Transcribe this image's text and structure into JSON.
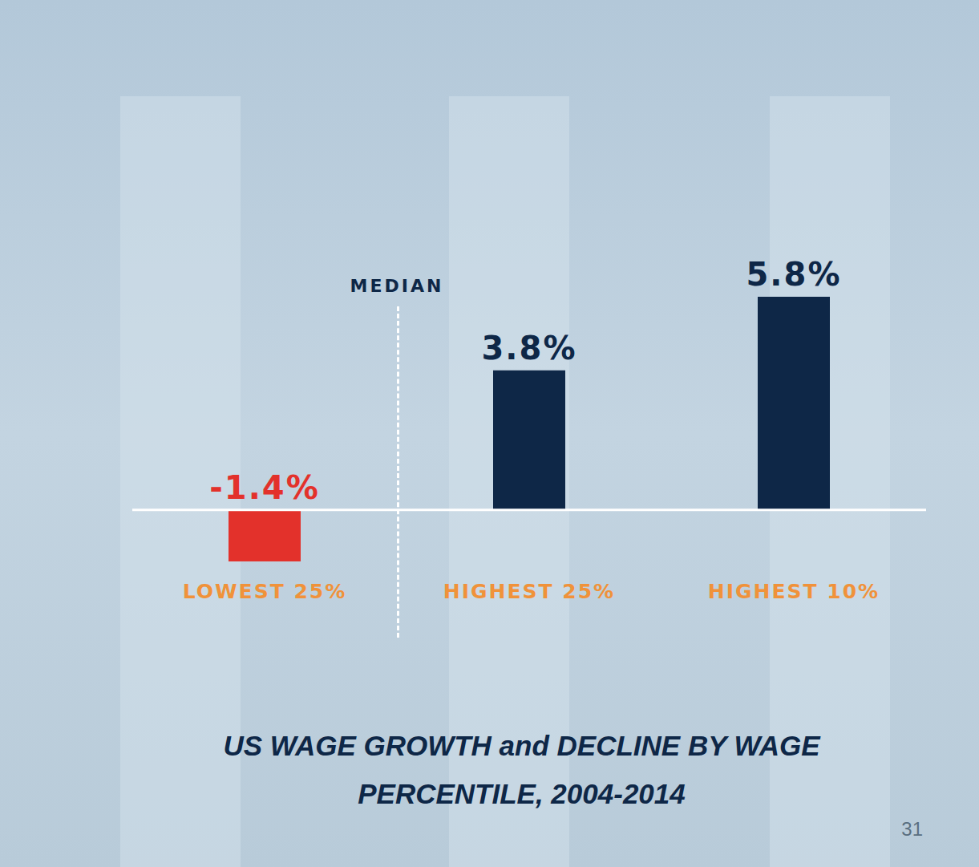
{
  "chart_data": {
    "type": "bar",
    "title": "US WAGE GROWTH and DECLINE BY WAGE PERCENTILE, 2004-2014",
    "categories": [
      "LOWEST 25%",
      "HIGHEST 25%",
      "HIGHEST 10%"
    ],
    "values": [
      -1.4,
      3.8,
      5.8
    ],
    "value_labels": [
      "-1.4%",
      "3.8%",
      "5.8%"
    ],
    "colors": [
      "#e3312b",
      "#0e2747",
      "#0e2747"
    ],
    "data_labels": true,
    "tick_labels": "x",
    "grid": false,
    "annotations": [
      "MEDIAN"
    ],
    "page_number": "31"
  }
}
